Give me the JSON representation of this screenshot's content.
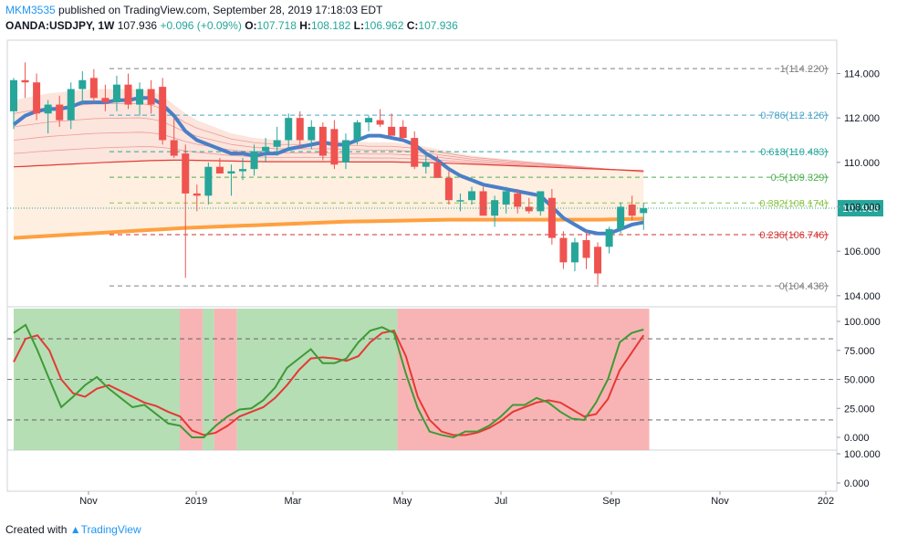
{
  "header": {
    "username": "MKM3535",
    "published": "published on TradingView.com, September 28, 2019 17:18:03 EDT",
    "symbol": "OANDA:USDJPY, 1W",
    "last": "107.936",
    "change": "+0.096 (+0.09%)",
    "o_label": "O:",
    "o_value": "107.718",
    "h_label": "H:",
    "h_value": "108.182",
    "l_label": "L:",
    "l_value": "106.962",
    "c_label": "C:",
    "c_value": "107.936"
  },
  "footer": {
    "created_with": "Created with",
    "brand": "TradingView"
  },
  "colors": {
    "up": "#26a69a",
    "down": "#ef5350",
    "ema": "#4a7fc7",
    "sma": "#ffa040",
    "stochK": "#3e9a35",
    "stochD": "#e53935"
  },
  "chart_data": {
    "type": "candlestick",
    "price_axis_ticks": [
      "114.000",
      "112.000",
      "110.000",
      "108.000",
      "106.000",
      "104.000"
    ],
    "price_ylim": [
      103.5,
      115.5
    ],
    "last_price_label": "107.936",
    "time_labels": [
      "Nov",
      "2019",
      "Mar",
      "May",
      "Jul",
      "Sep",
      "Nov",
      "202"
    ],
    "fib_levels": [
      {
        "ratio": "1",
        "price": 114.22,
        "label": "1(114.220)",
        "color": "#808080"
      },
      {
        "ratio": "0.786",
        "price": 112.126,
        "label": "0.786(112.126)",
        "color": "#4aa3c8"
      },
      {
        "ratio": "0.618",
        "price": 110.483,
        "label": "0.618(110.483)",
        "color": "#26a69a"
      },
      {
        "ratio": "0.5",
        "price": 109.329,
        "label": "0.5(109.329)",
        "color": "#4caf50"
      },
      {
        "ratio": "0.382",
        "price": 108.174,
        "label": "0.382(108.174)",
        "color": "#8bc34a"
      },
      {
        "ratio": "0.236",
        "price": 106.746,
        "label": "0.236(106.746)",
        "color": "#d32f2f"
      },
      {
        "ratio": "0",
        "price": 104.438,
        "label": "0(104.438)",
        "color": "#808080"
      }
    ],
    "candles": [
      {
        "o": 112.3,
        "h": 113.8,
        "l": 111.5,
        "c": 113.7
      },
      {
        "o": 113.7,
        "h": 114.5,
        "l": 112.9,
        "c": 113.6
      },
      {
        "o": 113.6,
        "h": 114.0,
        "l": 111.9,
        "c": 112.2
      },
      {
        "o": 112.2,
        "h": 112.8,
        "l": 111.3,
        "c": 112.6
      },
      {
        "o": 112.6,
        "h": 113.0,
        "l": 111.6,
        "c": 111.9
      },
      {
        "o": 111.9,
        "h": 113.6,
        "l": 111.5,
        "c": 113.3
      },
      {
        "o": 113.3,
        "h": 114.1,
        "l": 112.6,
        "c": 113.7
      },
      {
        "o": 113.8,
        "h": 114.2,
        "l": 112.7,
        "c": 112.9
      },
      {
        "o": 112.9,
        "h": 113.5,
        "l": 112.3,
        "c": 112.7
      },
      {
        "o": 112.7,
        "h": 113.9,
        "l": 112.3,
        "c": 113.5
      },
      {
        "o": 113.5,
        "h": 114.0,
        "l": 112.4,
        "c": 112.6
      },
      {
        "o": 112.6,
        "h": 113.6,
        "l": 112.1,
        "c": 113.3
      },
      {
        "o": 113.3,
        "h": 113.7,
        "l": 112.2,
        "c": 112.6
      },
      {
        "o": 113.4,
        "h": 113.8,
        "l": 110.8,
        "c": 111.0
      },
      {
        "o": 111.0,
        "h": 112.0,
        "l": 110.2,
        "c": 110.3
      },
      {
        "o": 110.4,
        "h": 110.8,
        "l": 104.8,
        "c": 108.6
      },
      {
        "o": 108.6,
        "h": 109.0,
        "l": 107.8,
        "c": 108.5
      },
      {
        "o": 108.5,
        "h": 110.0,
        "l": 108.1,
        "c": 109.8
      },
      {
        "o": 109.8,
        "h": 110.2,
        "l": 109.5,
        "c": 109.5
      },
      {
        "o": 109.5,
        "h": 109.9,
        "l": 108.5,
        "c": 109.6
      },
      {
        "o": 109.6,
        "h": 110.2,
        "l": 109.2,
        "c": 109.7
      },
      {
        "o": 109.7,
        "h": 110.8,
        "l": 109.4,
        "c": 110.5
      },
      {
        "o": 110.5,
        "h": 111.1,
        "l": 110.0,
        "c": 110.7
      },
      {
        "o": 110.7,
        "h": 111.6,
        "l": 110.3,
        "c": 111.0
      },
      {
        "o": 111.0,
        "h": 112.2,
        "l": 110.5,
        "c": 112.0
      },
      {
        "o": 112.0,
        "h": 112.3,
        "l": 110.7,
        "c": 111.0
      },
      {
        "o": 111.0,
        "h": 111.9,
        "l": 110.6,
        "c": 111.6
      },
      {
        "o": 111.6,
        "h": 111.8,
        "l": 110.1,
        "c": 110.3
      },
      {
        "o": 111.5,
        "h": 111.9,
        "l": 109.7,
        "c": 109.9
      },
      {
        "o": 110.0,
        "h": 111.3,
        "l": 109.7,
        "c": 111.0
      },
      {
        "o": 111.0,
        "h": 111.9,
        "l": 110.8,
        "c": 111.8
      },
      {
        "o": 111.8,
        "h": 112.1,
        "l": 111.4,
        "c": 112.0
      },
      {
        "o": 111.9,
        "h": 112.4,
        "l": 111.6,
        "c": 111.7
      },
      {
        "o": 111.6,
        "h": 112.2,
        "l": 111.3,
        "c": 111.2
      },
      {
        "o": 111.6,
        "h": 111.9,
        "l": 111.0,
        "c": 111.1
      },
      {
        "o": 111.1,
        "h": 111.4,
        "l": 109.7,
        "c": 109.8
      },
      {
        "o": 109.8,
        "h": 110.4,
        "l": 109.5,
        "c": 110.0
      },
      {
        "o": 110.0,
        "h": 110.3,
        "l": 109.3,
        "c": 109.3
      },
      {
        "o": 109.3,
        "h": 109.6,
        "l": 108.1,
        "c": 108.3
      },
      {
        "o": 108.3,
        "h": 108.6,
        "l": 107.8,
        "c": 108.3
      },
      {
        "o": 108.3,
        "h": 108.9,
        "l": 108.1,
        "c": 108.7
      },
      {
        "o": 108.7,
        "h": 108.9,
        "l": 107.6,
        "c": 107.6
      },
      {
        "o": 107.6,
        "h": 108.5,
        "l": 107.1,
        "c": 108.3
      },
      {
        "o": 108.1,
        "h": 108.9,
        "l": 107.7,
        "c": 108.7
      },
      {
        "o": 108.6,
        "h": 108.8,
        "l": 107.7,
        "c": 108.0
      },
      {
        "o": 108.0,
        "h": 108.4,
        "l": 107.7,
        "c": 107.8
      },
      {
        "o": 107.8,
        "h": 108.7,
        "l": 107.6,
        "c": 108.7
      },
      {
        "o": 108.4,
        "h": 108.8,
        "l": 106.3,
        "c": 106.6
      },
      {
        "o": 106.6,
        "h": 106.9,
        "l": 105.2,
        "c": 105.5
      },
      {
        "o": 105.5,
        "h": 106.6,
        "l": 105.1,
        "c": 106.4
      },
      {
        "o": 106.5,
        "h": 106.9,
        "l": 105.2,
        "c": 105.7
      },
      {
        "o": 106.2,
        "h": 106.4,
        "l": 104.5,
        "c": 105.0
      },
      {
        "o": 106.2,
        "h": 107.1,
        "l": 105.9,
        "c": 107.0
      },
      {
        "o": 107.0,
        "h": 108.2,
        "l": 106.8,
        "c": 108.0
      },
      {
        "o": 108.1,
        "h": 108.5,
        "l": 107.4,
        "c": 107.6
      },
      {
        "o": 107.718,
        "h": 108.182,
        "l": 106.962,
        "c": 107.936
      }
    ],
    "ema_fast": [
      111.7,
      112.1,
      112.3,
      112.4,
      112.4,
      112.5,
      112.7,
      112.7,
      112.7,
      112.8,
      112.8,
      112.9,
      112.9,
      112.6,
      112.1,
      111.4,
      111.0,
      110.8,
      110.6,
      110.4,
      110.4,
      110.3,
      110.4,
      110.4,
      110.6,
      110.7,
      110.8,
      110.9,
      110.8,
      110.8,
      111.0,
      111.2,
      111.2,
      111.1,
      111.0,
      110.8,
      110.4,
      110.1,
      109.7,
      109.4,
      109.2,
      109.0,
      108.9,
      108.8,
      108.7,
      108.6,
      108.5,
      108.0,
      107.5,
      107.2,
      106.9,
      106.8,
      106.8,
      107.0,
      107.2,
      107.3
    ],
    "sma_long": [
      106.6,
      106.63,
      106.66,
      106.69,
      106.72,
      106.75,
      106.78,
      106.81,
      106.84,
      106.87,
      106.9,
      106.93,
      106.96,
      106.99,
      107.02,
      107.05,
      107.07,
      107.09,
      107.11,
      107.13,
      107.15,
      107.17,
      107.19,
      107.21,
      107.23,
      107.25,
      107.27,
      107.29,
      107.31,
      107.33,
      107.34,
      107.35,
      107.36,
      107.37,
      107.38,
      107.39,
      107.4,
      107.41,
      107.42,
      107.42,
      107.42,
      107.42,
      107.42,
      107.42,
      107.42,
      107.42,
      107.42,
      107.42,
      107.42,
      107.42,
      107.42,
      107.42,
      107.43,
      107.44,
      107.45,
      107.46
    ],
    "ma_upper": [
      112.8,
      112.9,
      113.0,
      113.1,
      113.15,
      113.2,
      113.25,
      113.3,
      113.3,
      113.3,
      113.3,
      113.3,
      113.2,
      113.0,
      112.6,
      112.2,
      111.9,
      111.7,
      111.5,
      111.3,
      111.2,
      111.1,
      111.05,
      111.0,
      111.0,
      111.0,
      111.0,
      111.0,
      111.0,
      110.95,
      110.95,
      110.9,
      110.9,
      110.9,
      110.85,
      110.8,
      110.7,
      110.6,
      110.5,
      110.4,
      110.3,
      110.25,
      110.2,
      110.15,
      110.1,
      110.05,
      110.0,
      109.95,
      109.9,
      109.85,
      109.8,
      109.75,
      109.7,
      109.65,
      109.6,
      109.55
    ],
    "ma_lower": [
      109.8,
      109.82,
      109.85,
      109.87,
      109.9,
      109.92,
      109.95,
      109.97,
      110.0,
      110.02,
      110.04,
      110.06,
      110.08,
      110.09,
      110.1,
      110.1,
      110.09,
      110.08,
      110.07,
      110.06,
      110.05,
      110.04,
      110.03,
      110.03,
      110.03,
      110.03,
      110.03,
      110.03,
      110.03,
      110.02,
      110.02,
      110.02,
      110.02,
      110.02,
      110.01,
      110.0,
      109.99,
      109.98,
      109.96,
      109.94,
      109.92,
      109.9,
      109.88,
      109.86,
      109.84,
      109.82,
      109.8,
      109.78,
      109.76,
      109.74,
      109.72,
      109.7,
      109.68,
      109.66,
      109.64,
      109.62
    ],
    "stochastic": {
      "axis_ticks": [
        "100.000",
        "75.000",
        "50.000",
        "25.000",
        "0.000"
      ],
      "ylim": [
        0,
        100
      ],
      "levels": [
        85,
        50,
        15
      ],
      "k": [
        90,
        97,
        75,
        50,
        26,
        35,
        45,
        52,
        42,
        34,
        26,
        28,
        20,
        12,
        10,
        0,
        0,
        10,
        18,
        24,
        25,
        32,
        43,
        60,
        68,
        76,
        64,
        64,
        68,
        82,
        92,
        95,
        90,
        55,
        25,
        5,
        2,
        0,
        5,
        5,
        10,
        18,
        28,
        28,
        34,
        30,
        22,
        16,
        15,
        30,
        50,
        82,
        90,
        93
      ],
      "d": [
        65,
        85,
        88,
        75,
        50,
        38,
        35,
        42,
        45,
        40,
        35,
        30,
        27,
        22,
        18,
        6,
        2,
        4,
        10,
        18,
        22,
        26,
        34,
        45,
        58,
        68,
        69,
        68,
        66,
        70,
        82,
        90,
        92,
        70,
        35,
        15,
        5,
        2,
        2,
        4,
        8,
        14,
        22,
        26,
        30,
        32,
        30,
        24,
        18,
        20,
        33,
        58,
        73,
        88
      ],
      "zones": [
        {
          "from": 0,
          "to": 14.5,
          "state": "green"
        },
        {
          "from": 14.5,
          "to": 16.5,
          "state": "red"
        },
        {
          "from": 16.5,
          "to": 17.5,
          "state": "green"
        },
        {
          "from": 17.5,
          "to": 19.5,
          "state": "red"
        },
        {
          "from": 19.5,
          "to": 33.5,
          "state": "green"
        },
        {
          "from": 33.5,
          "to": 55.5,
          "state": "red"
        }
      ]
    },
    "lower_axis_ticks": [
      "100.000",
      "0.000"
    ]
  }
}
